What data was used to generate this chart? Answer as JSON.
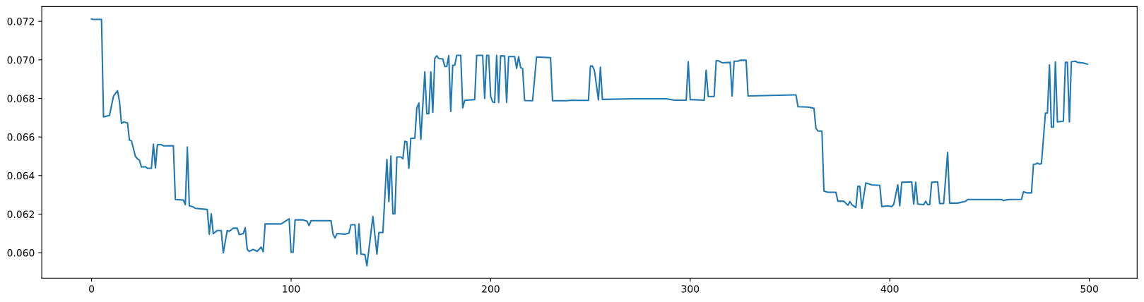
{
  "chart_data": {
    "type": "line",
    "series": [
      {
        "color": "#1f77b4",
        "x": [
          0,
          1,
          5,
          6,
          9,
          11,
          13,
          14,
          15,
          16,
          18,
          19,
          20,
          22,
          23,
          24,
          25,
          27,
          28,
          30,
          31,
          32,
          33,
          35,
          36,
          41,
          42,
          46,
          47,
          48,
          49,
          51,
          52,
          58,
          59,
          60,
          61,
          63,
          65,
          66,
          68,
          69,
          71,
          73,
          74,
          76,
          77,
          78,
          79,
          81,
          83,
          85,
          86,
          87,
          95,
          99,
          100,
          101,
          102,
          106,
          108,
          109,
          110,
          120,
          121,
          122,
          123,
          127,
          129,
          130,
          132,
          133,
          134,
          135,
          137,
          138,
          141,
          143,
          144,
          146,
          148,
          149,
          150,
          151,
          152,
          153,
          155,
          156,
          157,
          158,
          159,
          160,
          162,
          163,
          164,
          165,
          167,
          168,
          169,
          170,
          171,
          172,
          173,
          174,
          176,
          177,
          178,
          179,
          180,
          181,
          182,
          183,
          185,
          186,
          187,
          192,
          193,
          196,
          197,
          198,
          199,
          200,
          201,
          202,
          203,
          204,
          205,
          207,
          208,
          209,
          212,
          213,
          214,
          215,
          216,
          217,
          221,
          223,
          230,
          231,
          238,
          241,
          243,
          249,
          250,
          251,
          252,
          254,
          255,
          256,
          271,
          288,
          292,
          298,
          299,
          300,
          307,
          308,
          309,
          312,
          313,
          314,
          316,
          320,
          321,
          322,
          324,
          325,
          328,
          329,
          352,
          353,
          354,
          359,
          361,
          362,
          363,
          364,
          366,
          367,
          369,
          373,
          374,
          377,
          379,
          380,
          381,
          383,
          384,
          385,
          386,
          388,
          391,
          395,
          396,
          399,
          401,
          402,
          404,
          405,
          406,
          411,
          412,
          413,
          414,
          417,
          418,
          419,
          420,
          421,
          424,
          425,
          427,
          429,
          430,
          434,
          438,
          439,
          450,
          456,
          457,
          458,
          460,
          466,
          467,
          469,
          471,
          472,
          473,
          474,
          475,
          476,
          478,
          479,
          480,
          481,
          482,
          483,
          484,
          487,
          488,
          489,
          490,
          491,
          493,
          494,
          497,
          499
        ],
        "values": [
          0.07212,
          0.0721,
          0.0721,
          0.06704,
          0.06712,
          0.06812,
          0.0684,
          0.06785,
          0.0667,
          0.06678,
          0.06673,
          0.06584,
          0.0658,
          0.06499,
          0.06487,
          0.0648,
          0.06444,
          0.06446,
          0.06438,
          0.06438,
          0.06563,
          0.0644,
          0.0656,
          0.0656,
          0.06554,
          0.06555,
          0.06276,
          0.06273,
          0.06249,
          0.06548,
          0.06243,
          0.06237,
          0.0623,
          0.06224,
          0.06096,
          0.06202,
          0.06099,
          0.06115,
          0.06115,
          0.05999,
          0.06115,
          0.06111,
          0.06127,
          0.06127,
          0.06094,
          0.06099,
          0.06129,
          0.06017,
          0.06007,
          0.06017,
          0.06007,
          0.06029,
          0.06005,
          0.06149,
          0.06149,
          0.06176,
          0.06002,
          0.06002,
          0.0617,
          0.0617,
          0.06163,
          0.06141,
          0.06166,
          0.06166,
          0.06096,
          0.06076,
          0.06099,
          0.06096,
          0.06102,
          0.06145,
          0.06145,
          0.05993,
          0.06149,
          0.05993,
          0.0599,
          0.05932,
          0.06188,
          0.05993,
          0.06105,
          0.06105,
          0.06483,
          0.06265,
          0.06502,
          0.06202,
          0.06202,
          0.06496,
          0.06496,
          0.06487,
          0.06578,
          0.06574,
          0.06438,
          0.06593,
          0.06593,
          0.06751,
          0.06776,
          0.06588,
          0.06938,
          0.06721,
          0.06721,
          0.06938,
          0.06728,
          0.07007,
          0.07021,
          0.07007,
          0.07005,
          0.06966,
          0.06966,
          0.07022,
          0.06732,
          0.06972,
          0.06972,
          0.07023,
          0.07023,
          0.06751,
          0.0679,
          0.06794,
          0.07023,
          0.07023,
          0.068,
          0.07023,
          0.07023,
          0.0681,
          0.06782,
          0.06779,
          0.07023,
          0.06779,
          0.07021,
          0.0702,
          0.06779,
          0.07017,
          0.07017,
          0.06956,
          0.07017,
          0.0696,
          0.06956,
          0.06789,
          0.06788,
          0.07015,
          0.07011,
          0.06788,
          0.06788,
          0.06791,
          0.0679,
          0.0679,
          0.06968,
          0.06968,
          0.06944,
          0.06793,
          0.06962,
          0.06795,
          0.06798,
          0.06798,
          0.06791,
          0.06791,
          0.0699,
          0.06794,
          0.06791,
          0.06946,
          0.0681,
          0.0681,
          0.06996,
          0.06996,
          0.06985,
          0.06987,
          0.06812,
          0.06993,
          0.06993,
          0.06998,
          0.06998,
          0.06813,
          0.06818,
          0.06818,
          0.06757,
          0.06755,
          0.06751,
          0.06749,
          0.06645,
          0.06631,
          0.06631,
          0.0632,
          0.06313,
          0.06313,
          0.06267,
          0.06267,
          0.06246,
          0.06265,
          0.06249,
          0.06234,
          0.06344,
          0.06344,
          0.0623,
          0.06362,
          0.06352,
          0.06349,
          0.06239,
          0.06243,
          0.06239,
          0.06251,
          0.06352,
          0.06243,
          0.06365,
          0.06367,
          0.06251,
          0.06365,
          0.06252,
          0.06249,
          0.06267,
          0.06249,
          0.06249,
          0.06365,
          0.06367,
          0.06255,
          0.06255,
          0.0652,
          0.06257,
          0.06257,
          0.06267,
          0.06276,
          0.06276,
          0.06276,
          0.0627,
          0.06273,
          0.06276,
          0.06277,
          0.06316,
          0.0631,
          0.0631,
          0.06459,
          0.06459,
          0.06465,
          0.06459,
          0.06462,
          0.06724,
          0.06724,
          0.06974,
          0.06651,
          0.06651,
          0.06989,
          0.06678,
          0.06682,
          0.06987,
          0.06987,
          0.06678,
          0.0699,
          0.06993,
          0.06987,
          0.06984,
          0.06978
        ]
      }
    ],
    "xlim": [
      -24.95,
      523.95
    ],
    "ylim": [
      0.05868,
      0.07276
    ],
    "xticks": [
      0,
      100,
      200,
      300,
      400,
      500
    ],
    "yticks": [
      {
        "value": 0.06,
        "label": "0.060"
      },
      {
        "value": 0.062,
        "label": "0.062"
      },
      {
        "value": 0.064,
        "label": "0.064"
      },
      {
        "value": 0.066,
        "label": "0.066"
      },
      {
        "value": 0.068,
        "label": "0.068"
      },
      {
        "value": 0.07,
        "label": "0.070"
      },
      {
        "value": 0.072,
        "label": "0.072"
      }
    ],
    "grid": false,
    "marker": "none",
    "line_style": "solid",
    "legend": false
  }
}
